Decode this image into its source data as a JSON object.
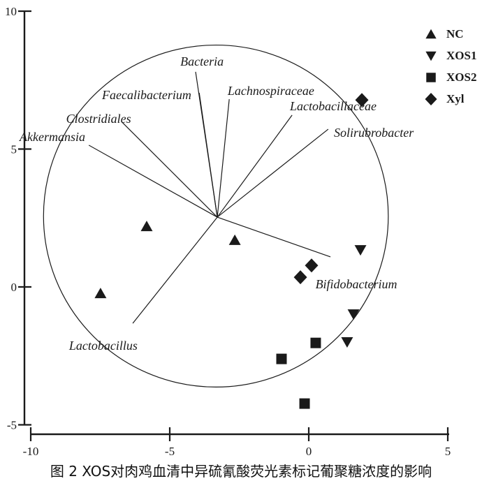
{
  "figure": {
    "caption": "图 2 XOS对肉鸡血清中异硫氰酸荧光素标记葡聚糖浓度的影响"
  },
  "colors": {
    "foreground": "#1a1a1a",
    "background": "#ffffff"
  },
  "chart_data": {
    "type": "scatter",
    "title": "",
    "xlabel": "",
    "ylabel": "",
    "xlim": [
      -10,
      5
    ],
    "ylim": [
      -5,
      10
    ],
    "x_ticks": [
      "-10",
      "-5",
      "0",
      "5"
    ],
    "y_ticks": [
      "10",
      "5",
      "0",
      "-5"
    ],
    "grid": false,
    "legend_position": "top-right",
    "series": [
      {
        "name": "NC",
        "marker": "triangle-up",
        "points": [
          [
            -5.83,
            2.2
          ],
          [
            -2.66,
            1.7
          ],
          [
            -7.49,
            -0.23
          ]
        ]
      },
      {
        "name": "XOS1",
        "marker": "triangle-down",
        "points": [
          [
            1.86,
            1.34
          ],
          [
            1.61,
            -0.99
          ],
          [
            1.38,
            -2.0
          ]
        ]
      },
      {
        "name": "XOS2",
        "marker": "square",
        "points": [
          [
            0.25,
            -2.03
          ],
          [
            -0.98,
            -2.61
          ],
          [
            -0.15,
            -4.23
          ]
        ]
      },
      {
        "name": "Xyl",
        "marker": "diamond",
        "points": [
          [
            1.91,
            6.78
          ],
          [
            0.1,
            0.78
          ],
          [
            -0.3,
            0.35
          ]
        ]
      }
    ],
    "biplot": {
      "origin": [
        -3.29,
        2.53
      ],
      "circle": {
        "center": [
          -3.34,
          2.57
        ],
        "radius": 6.2
      },
      "vectors": [
        {
          "label": "Bacteria",
          "end": [
            -4.07,
            7.8
          ],
          "label_pos": [
            -3.84,
            8.18
          ]
        },
        {
          "label": "Faecalibacterium",
          "end": [
            -3.94,
            7.04
          ],
          "label_pos": [
            -5.83,
            6.96
          ]
        },
        {
          "label": "Lachnospiraceae",
          "end": [
            -2.86,
            6.81
          ],
          "label_pos": [
            -1.36,
            7.11
          ]
        },
        {
          "label": "Lactobacillaceae",
          "end": [
            -0.6,
            6.23
          ],
          "label_pos": [
            0.88,
            6.56
          ]
        },
        {
          "label": "Solirubrobacter",
          "end": [
            0.7,
            5.72
          ],
          "label_pos": [
            2.34,
            5.59
          ]
        },
        {
          "label": "Clostridiales",
          "end": [
            -6.71,
            5.97
          ],
          "label_pos": [
            -7.56,
            6.1
          ]
        },
        {
          "label": "Akkermansia",
          "end": [
            -7.91,
            5.14
          ],
          "label_pos": [
            -9.22,
            5.44
          ]
        },
        {
          "label": "Bifidobacterium",
          "end": [
            0.78,
            1.09
          ],
          "label_pos": [
            1.71,
            0.1
          ]
        },
        {
          "label": "Lactobacillus",
          "end": [
            -6.33,
            -1.32
          ],
          "label_pos": [
            -7.39,
            -2.13
          ]
        }
      ]
    },
    "legend": [
      {
        "label": "NC",
        "marker": "triangle-up"
      },
      {
        "label": "XOS1",
        "marker": "triangle-down"
      },
      {
        "label": "XOS2",
        "marker": "square"
      },
      {
        "label": "Xyl",
        "marker": "diamond"
      }
    ]
  }
}
